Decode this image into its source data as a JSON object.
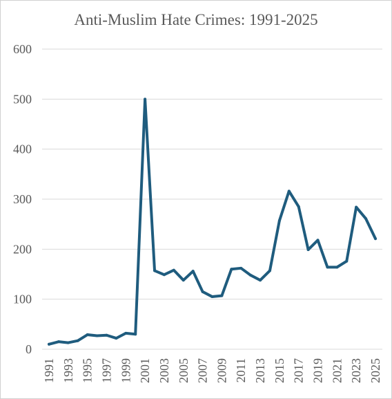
{
  "chart_data": {
    "type": "line",
    "title": "Anti-Muslim Hate Crimes: 1991-2025",
    "xlabel": "",
    "ylabel": "",
    "ylim": [
      0,
      600
    ],
    "yticks": [
      0,
      100,
      200,
      300,
      400,
      500,
      600
    ],
    "xticks": [
      1991,
      1993,
      1995,
      1997,
      1999,
      2001,
      2003,
      2005,
      2007,
      2009,
      2011,
      2013,
      2015,
      2017,
      2019,
      2021,
      2023,
      2025
    ],
    "grid": true,
    "legend": "none",
    "line_color": "#1f5c7e",
    "grid_color": "#d9d9d9",
    "x": [
      1991,
      1992,
      1993,
      1994,
      1995,
      1996,
      1997,
      1998,
      1999,
      2000,
      2001,
      2002,
      2003,
      2004,
      2005,
      2006,
      2007,
      2008,
      2009,
      2010,
      2011,
      2012,
      2013,
      2014,
      2015,
      2016,
      2017,
      2018,
      2019,
      2020,
      2021,
      2022,
      2023,
      2024,
      2025
    ],
    "values": [
      10,
      15,
      13,
      17,
      29,
      27,
      28,
      22,
      32,
      30,
      500,
      157,
      149,
      158,
      138,
      156,
      115,
      105,
      107,
      160,
      162,
      148,
      138,
      157,
      257,
      316,
      285,
      199,
      218,
      164,
      164,
      176,
      284,
      261,
      221
    ]
  }
}
